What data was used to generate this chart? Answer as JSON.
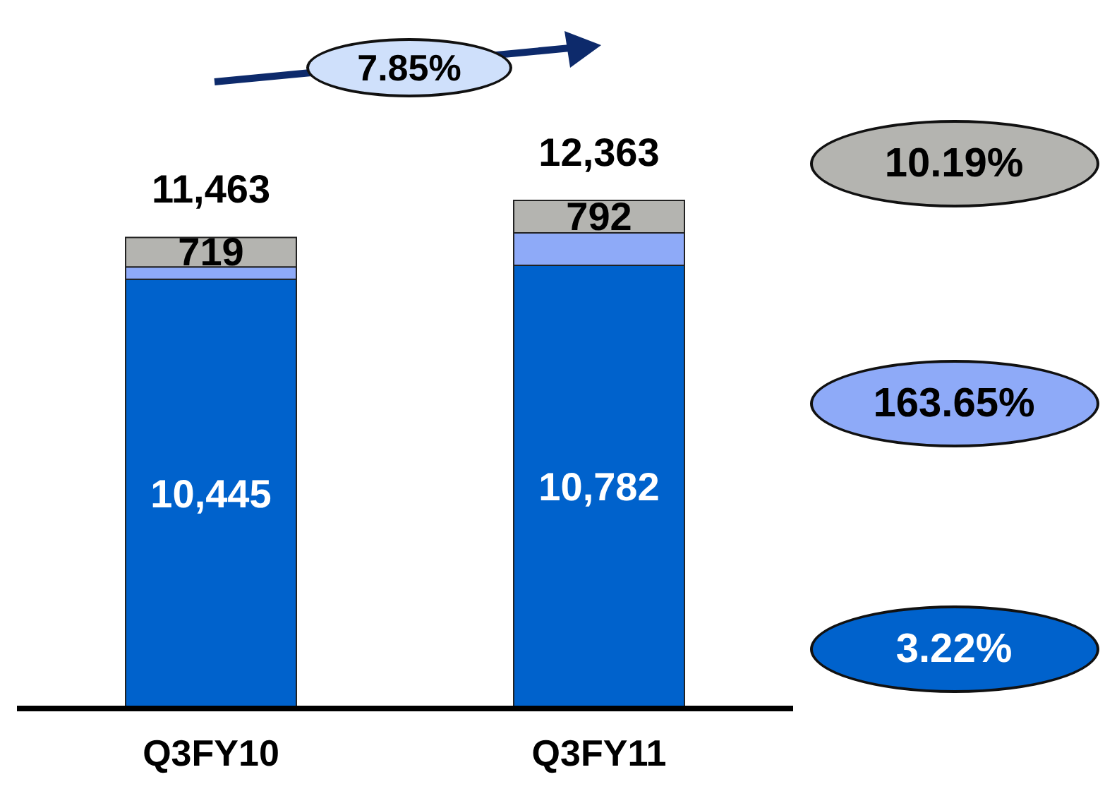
{
  "chart_data": {
    "type": "bar",
    "stacked": true,
    "categories": [
      "Q3FY10",
      "Q3FY11"
    ],
    "series": [
      {
        "color": "#0062cc",
        "values": [
          10445,
          10782
        ],
        "value_labels": [
          "10,445",
          "10,782"
        ]
      },
      {
        "color": "#8eaaf8",
        "values": [
          299,
          789
        ],
        "value_labels": [
          null,
          null
        ]
      },
      {
        "color": "#b4b4b0",
        "values": [
          719,
          792
        ],
        "value_labels": [
          "719",
          "792"
        ]
      }
    ],
    "totals": [
      "11,463",
      "12,363"
    ],
    "annotations": [
      "7.85%",
      "10.19%",
      "163.65%",
      "3.22%"
    ],
    "legend": false,
    "grid": false
  }
}
